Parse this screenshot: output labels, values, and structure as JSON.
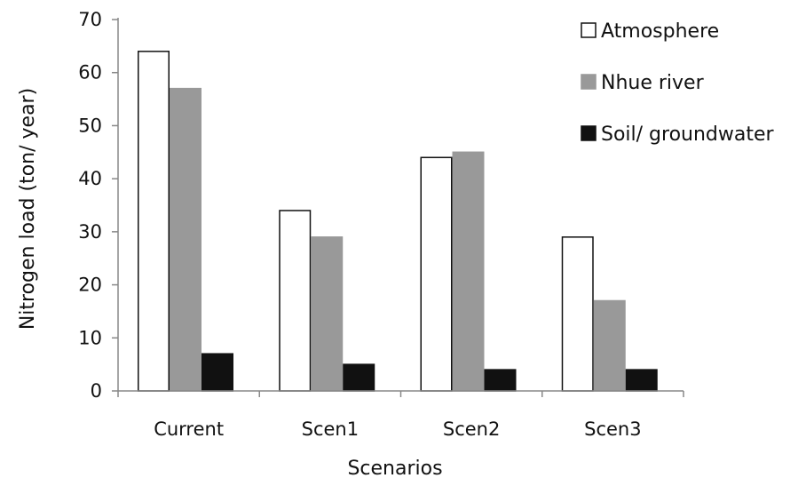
{
  "chart_data": {
    "type": "bar",
    "categories": [
      "Current",
      "Scen1",
      "Scen2",
      "Scen3"
    ],
    "series": [
      {
        "name": "Atmosphere",
        "values": [
          64,
          34,
          44,
          29
        ],
        "color": "#ffffff",
        "stroke": "#111111"
      },
      {
        "name": "Nhue river",
        "values": [
          57,
          29,
          45,
          17
        ],
        "color": "#999999",
        "stroke": "#999999"
      },
      {
        "name": "Soil/ groundwater",
        "values": [
          7,
          5,
          4,
          4
        ],
        "color": "#111111",
        "stroke": "#111111"
      }
    ],
    "title": "",
    "xlabel": "Scenarios",
    "ylabel": "Nitrogen load (ton/ year)",
    "ylim": [
      0,
      70
    ],
    "yticks": [
      0,
      10,
      20,
      30,
      40,
      50,
      60,
      70
    ],
    "grid": false,
    "legend": "top-right"
  }
}
